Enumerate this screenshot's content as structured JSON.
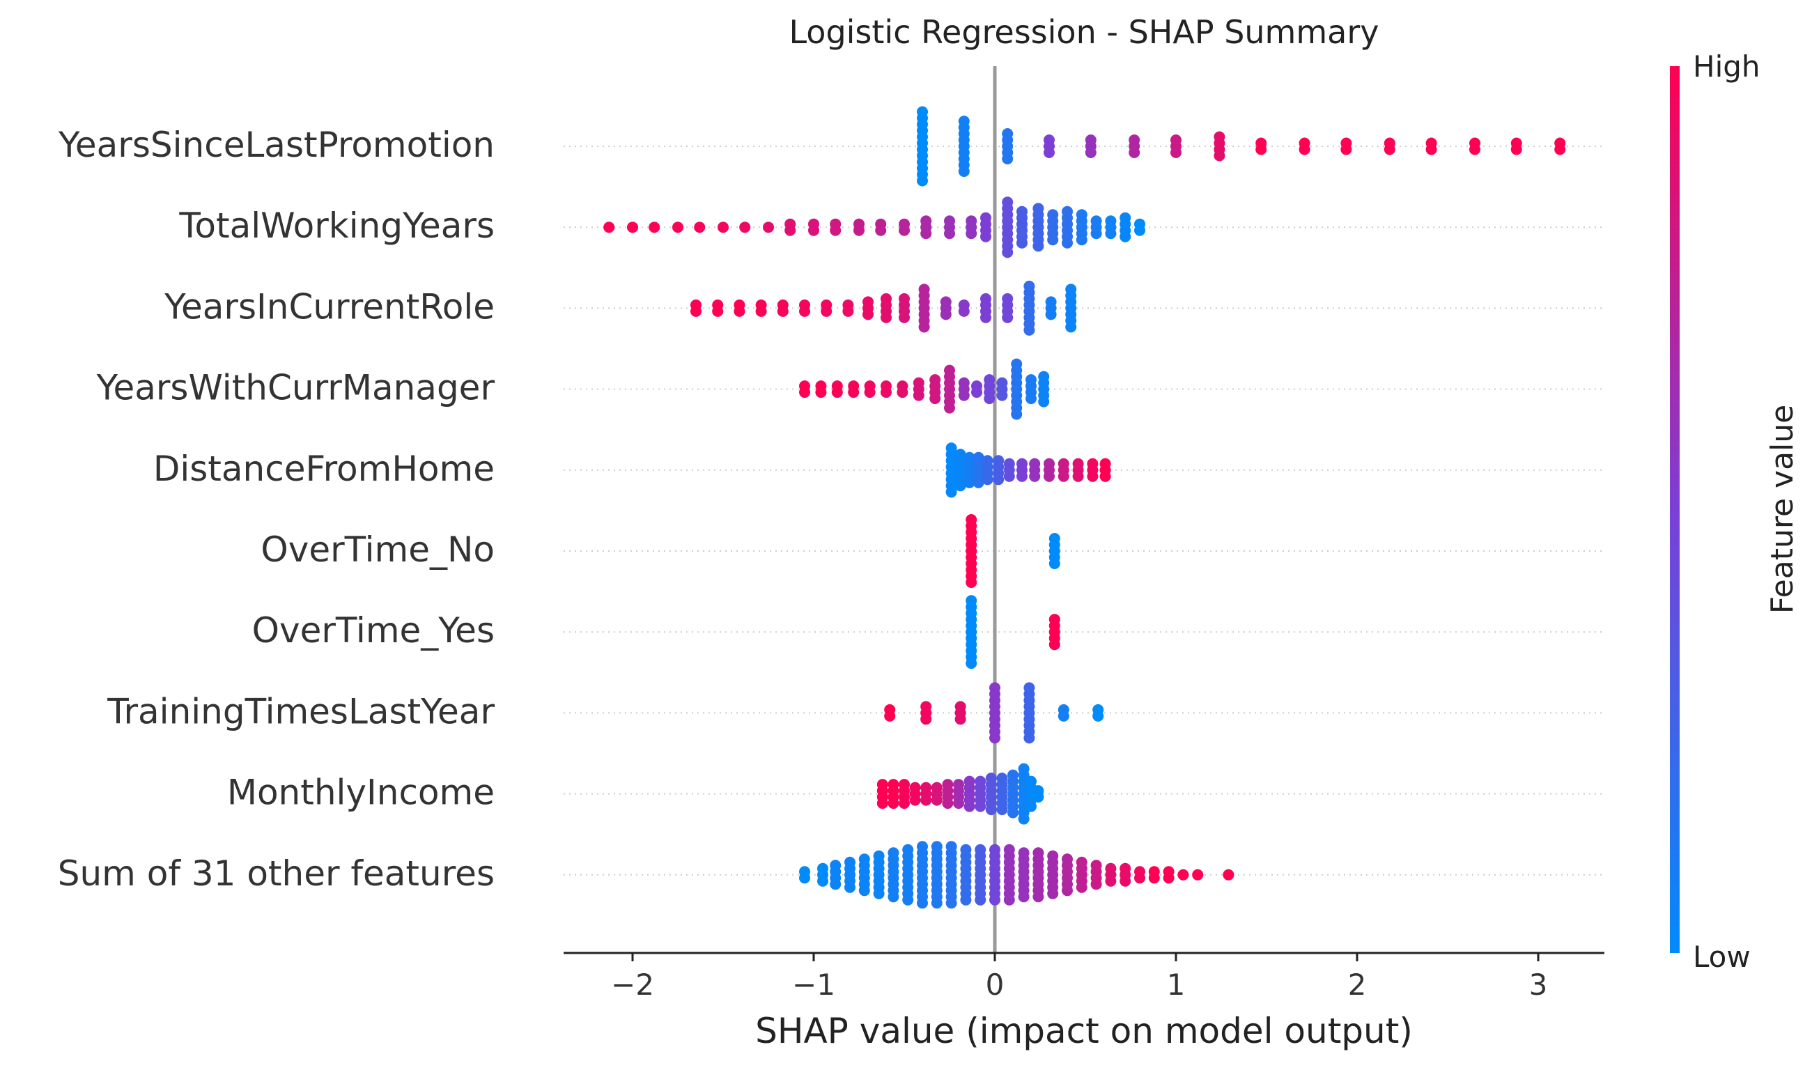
{
  "chart_data": {
    "type": "scatter",
    "subtype": "shap-beeswarm",
    "title": "Logistic Regression - SHAP Summary",
    "xlabel": "SHAP value (impact on model output)",
    "xlim": [
      -2.4,
      3.4
    ],
    "xticks": [
      -2,
      -1,
      0,
      1,
      2,
      3
    ],
    "xtick_labels": [
      "−2",
      "−1",
      "0",
      "1",
      "2",
      "3"
    ],
    "grid": "dotted horizontal per feature row",
    "zero_line": true,
    "colorbar": {
      "label": "Feature value",
      "high_label": "High",
      "low_label": "Low",
      "high_color": "#ff0052",
      "low_color": "#008bfb"
    },
    "features": [
      {
        "name": "YearsSinceLastPromotion",
        "clusters": [
          {
            "x": -0.4,
            "v": 0.0,
            "n": 12
          },
          {
            "x": -0.17,
            "v": 0.07,
            "n": 9
          },
          {
            "x": 0.07,
            "v": 0.14,
            "n": 5
          },
          {
            "x": 0.3,
            "v": 0.5,
            "n": 3
          },
          {
            "x": 0.53,
            "v": 0.6,
            "n": 3
          },
          {
            "x": 0.77,
            "v": 0.7,
            "n": 3
          },
          {
            "x": 1.0,
            "v": 0.8,
            "n": 3
          },
          {
            "x": 1.24,
            "v": 0.9,
            "n": 4
          },
          {
            "x": 1.47,
            "v": 1.0,
            "n": 2
          },
          {
            "x": 1.71,
            "v": 1.0,
            "n": 2
          },
          {
            "x": 1.94,
            "v": 1.0,
            "n": 2
          },
          {
            "x": 2.18,
            "v": 1.0,
            "n": 2
          },
          {
            "x": 2.41,
            "v": 1.0,
            "n": 2
          },
          {
            "x": 2.65,
            "v": 1.0,
            "n": 2
          },
          {
            "x": 2.88,
            "v": 1.0,
            "n": 2
          },
          {
            "x": 3.12,
            "v": 1.0,
            "n": 2
          }
        ]
      },
      {
        "name": "TotalWorkingYears",
        "clusters": [
          {
            "x": -2.13,
            "v": 1.0,
            "n": 1
          },
          {
            "x": -2.0,
            "v": 1.0,
            "n": 1
          },
          {
            "x": -1.88,
            "v": 1.0,
            "n": 1
          },
          {
            "x": -1.75,
            "v": 0.98,
            "n": 1
          },
          {
            "x": -1.63,
            "v": 0.97,
            "n": 1
          },
          {
            "x": -1.5,
            "v": 0.95,
            "n": 1
          },
          {
            "x": -1.38,
            "v": 0.93,
            "n": 1
          },
          {
            "x": -1.25,
            "v": 0.9,
            "n": 1
          },
          {
            "x": -1.13,
            "v": 0.88,
            "n": 2
          },
          {
            "x": -1.0,
            "v": 0.85,
            "n": 2
          },
          {
            "x": -0.88,
            "v": 0.82,
            "n": 2
          },
          {
            "x": -0.75,
            "v": 0.78,
            "n": 2
          },
          {
            "x": -0.63,
            "v": 0.75,
            "n": 2
          },
          {
            "x": -0.5,
            "v": 0.72,
            "n": 2
          },
          {
            "x": -0.38,
            "v": 0.68,
            "n": 3
          },
          {
            "x": -0.25,
            "v": 0.62,
            "n": 3
          },
          {
            "x": -0.13,
            "v": 0.58,
            "n": 3
          },
          {
            "x": -0.05,
            "v": 0.5,
            "n": 4
          },
          {
            "x": 0.07,
            "v": 0.4,
            "n": 9
          },
          {
            "x": 0.15,
            "v": 0.3,
            "n": 6
          },
          {
            "x": 0.24,
            "v": 0.25,
            "n": 7
          },
          {
            "x": 0.32,
            "v": 0.2,
            "n": 5
          },
          {
            "x": 0.4,
            "v": 0.18,
            "n": 6
          },
          {
            "x": 0.48,
            "v": 0.12,
            "n": 5
          },
          {
            "x": 0.56,
            "v": 0.1,
            "n": 3
          },
          {
            "x": 0.64,
            "v": 0.06,
            "n": 3
          },
          {
            "x": 0.72,
            "v": 0.03,
            "n": 4
          },
          {
            "x": 0.8,
            "v": 0.0,
            "n": 2
          }
        ]
      },
      {
        "name": "YearsInCurrentRole",
        "clusters": [
          {
            "x": -1.65,
            "v": 1.0,
            "n": 2
          },
          {
            "x": -1.53,
            "v": 1.0,
            "n": 2
          },
          {
            "x": -1.41,
            "v": 1.0,
            "n": 2
          },
          {
            "x": -1.29,
            "v": 0.98,
            "n": 2
          },
          {
            "x": -1.17,
            "v": 0.97,
            "n": 2
          },
          {
            "x": -1.05,
            "v": 0.96,
            "n": 2
          },
          {
            "x": -0.93,
            "v": 0.95,
            "n": 2
          },
          {
            "x": -0.81,
            "v": 0.93,
            "n": 2
          },
          {
            "x": -0.7,
            "v": 0.92,
            "n": 3
          },
          {
            "x": -0.6,
            "v": 0.9,
            "n": 4
          },
          {
            "x": -0.5,
            "v": 0.85,
            "n": 4
          },
          {
            "x": -0.39,
            "v": 0.72,
            "n": 7
          },
          {
            "x": -0.27,
            "v": 0.62,
            "n": 3
          },
          {
            "x": -0.17,
            "v": 0.55,
            "n": 2
          },
          {
            "x": -0.05,
            "v": 0.5,
            "n": 4
          },
          {
            "x": 0.07,
            "v": 0.45,
            "n": 4
          },
          {
            "x": 0.19,
            "v": 0.2,
            "n": 8
          },
          {
            "x": 0.31,
            "v": 0.08,
            "n": 3
          },
          {
            "x": 0.42,
            "v": 0.05,
            "n": 7
          }
        ]
      },
      {
        "name": "YearsWithCurrManager",
        "clusters": [
          {
            "x": -1.05,
            "v": 1.0,
            "n": 2
          },
          {
            "x": -0.96,
            "v": 1.0,
            "n": 2
          },
          {
            "x": -0.87,
            "v": 0.98,
            "n": 2
          },
          {
            "x": -0.78,
            "v": 0.97,
            "n": 2
          },
          {
            "x": -0.69,
            "v": 0.95,
            "n": 2
          },
          {
            "x": -0.6,
            "v": 0.93,
            "n": 2
          },
          {
            "x": -0.51,
            "v": 0.9,
            "n": 2
          },
          {
            "x": -0.42,
            "v": 0.85,
            "n": 3
          },
          {
            "x": -0.33,
            "v": 0.82,
            "n": 4
          },
          {
            "x": -0.25,
            "v": 0.75,
            "n": 7
          },
          {
            "x": -0.17,
            "v": 0.6,
            "n": 3
          },
          {
            "x": -0.1,
            "v": 0.5,
            "n": 2
          },
          {
            "x": -0.03,
            "v": 0.45,
            "n": 4
          },
          {
            "x": 0.04,
            "v": 0.35,
            "n": 3
          },
          {
            "x": 0.12,
            "v": 0.15,
            "n": 9
          },
          {
            "x": 0.2,
            "v": 0.1,
            "n": 4
          },
          {
            "x": 0.27,
            "v": 0.05,
            "n": 5
          }
        ]
      },
      {
        "name": "DistanceFromHome",
        "clusters": [
          {
            "x": -0.24,
            "v": 0.02,
            "n": 8
          },
          {
            "x": -0.19,
            "v": 0.04,
            "n": 6
          },
          {
            "x": -0.14,
            "v": 0.08,
            "n": 5
          },
          {
            "x": -0.09,
            "v": 0.15,
            "n": 5
          },
          {
            "x": -0.04,
            "v": 0.22,
            "n": 4
          },
          {
            "x": 0.02,
            "v": 0.3,
            "n": 4
          },
          {
            "x": 0.08,
            "v": 0.4,
            "n": 3
          },
          {
            "x": 0.15,
            "v": 0.5,
            "n": 3
          },
          {
            "x": 0.22,
            "v": 0.6,
            "n": 3
          },
          {
            "x": 0.3,
            "v": 0.7,
            "n": 3
          },
          {
            "x": 0.38,
            "v": 0.8,
            "n": 3
          },
          {
            "x": 0.46,
            "v": 0.88,
            "n": 3
          },
          {
            "x": 0.54,
            "v": 0.95,
            "n": 3
          },
          {
            "x": 0.61,
            "v": 1.0,
            "n": 3
          }
        ]
      },
      {
        "name": "OverTime_No",
        "clusters": [
          {
            "x": -0.13,
            "v": 1.0,
            "n": 11
          },
          {
            "x": 0.33,
            "v": 0.0,
            "n": 5
          }
        ]
      },
      {
        "name": "OverTime_Yes",
        "clusters": [
          {
            "x": -0.13,
            "v": 0.0,
            "n": 11
          },
          {
            "x": 0.33,
            "v": 1.0,
            "n": 5
          }
        ]
      },
      {
        "name": "TrainingTimesLastYear",
        "clusters": [
          {
            "x": -0.58,
            "v": 1.0,
            "n": 2
          },
          {
            "x": -0.38,
            "v": 0.95,
            "n": 3
          },
          {
            "x": -0.19,
            "v": 0.9,
            "n": 3
          },
          {
            "x": 0.0,
            "v": 0.55,
            "n": 9
          },
          {
            "x": 0.19,
            "v": 0.25,
            "n": 9
          },
          {
            "x": 0.38,
            "v": 0.08,
            "n": 2
          },
          {
            "x": 0.57,
            "v": 0.0,
            "n": 2
          }
        ]
      },
      {
        "name": "MonthlyIncome",
        "clusters": [
          {
            "x": -0.62,
            "v": 1.0,
            "n": 4
          },
          {
            "x": -0.56,
            "v": 1.0,
            "n": 4
          },
          {
            "x": -0.5,
            "v": 0.97,
            "n": 4
          },
          {
            "x": -0.44,
            "v": 0.95,
            "n": 3
          },
          {
            "x": -0.38,
            "v": 0.9,
            "n": 3
          },
          {
            "x": -0.32,
            "v": 0.85,
            "n": 3
          },
          {
            "x": -0.26,
            "v": 0.75,
            "n": 4
          },
          {
            "x": -0.2,
            "v": 0.65,
            "n": 4
          },
          {
            "x": -0.14,
            "v": 0.55,
            "n": 5
          },
          {
            "x": -0.08,
            "v": 0.45,
            "n": 5
          },
          {
            "x": -0.02,
            "v": 0.35,
            "n": 6
          },
          {
            "x": 0.04,
            "v": 0.25,
            "n": 6
          },
          {
            "x": 0.1,
            "v": 0.15,
            "n": 7
          },
          {
            "x": 0.16,
            "v": 0.06,
            "n": 9
          },
          {
            "x": 0.2,
            "v": 0.02,
            "n": 5
          },
          {
            "x": 0.24,
            "v": 0.0,
            "n": 2
          }
        ]
      },
      {
        "name": "Sum of 31 other features",
        "clusters": [
          {
            "x": -1.05,
            "v": 0.0,
            "n": 2
          },
          {
            "x": -0.95,
            "v": 0.0,
            "n": 3
          },
          {
            "x": -0.88,
            "v": 0.05,
            "n": 4
          },
          {
            "x": -0.8,
            "v": 0.05,
            "n": 5
          },
          {
            "x": -0.72,
            "v": 0.05,
            "n": 6
          },
          {
            "x": -0.64,
            "v": 0.05,
            "n": 7
          },
          {
            "x": -0.56,
            "v": 0.08,
            "n": 8
          },
          {
            "x": -0.48,
            "v": 0.08,
            "n": 9
          },
          {
            "x": -0.4,
            "v": 0.1,
            "n": 10
          },
          {
            "x": -0.32,
            "v": 0.12,
            "n": 10
          },
          {
            "x": -0.24,
            "v": 0.15,
            "n": 10
          },
          {
            "x": -0.16,
            "v": 0.2,
            "n": 9
          },
          {
            "x": -0.08,
            "v": 0.3,
            "n": 9
          },
          {
            "x": 0.0,
            "v": 0.45,
            "n": 9
          },
          {
            "x": 0.08,
            "v": 0.6,
            "n": 9
          },
          {
            "x": 0.16,
            "v": 0.6,
            "n": 8
          },
          {
            "x": 0.24,
            "v": 0.65,
            "n": 8
          },
          {
            "x": 0.32,
            "v": 0.65,
            "n": 7
          },
          {
            "x": 0.4,
            "v": 0.7,
            "n": 6
          },
          {
            "x": 0.48,
            "v": 0.75,
            "n": 5
          },
          {
            "x": 0.56,
            "v": 0.8,
            "n": 4
          },
          {
            "x": 0.64,
            "v": 0.88,
            "n": 3
          },
          {
            "x": 0.72,
            "v": 0.92,
            "n": 3
          },
          {
            "x": 0.8,
            "v": 0.95,
            "n": 2
          },
          {
            "x": 0.88,
            "v": 1.0,
            "n": 2
          },
          {
            "x": 0.96,
            "v": 1.0,
            "n": 2
          },
          {
            "x": 1.04,
            "v": 1.0,
            "n": 1
          },
          {
            "x": 1.12,
            "v": 1.0,
            "n": 1
          },
          {
            "x": 1.29,
            "v": 1.0,
            "n": 1
          }
        ]
      }
    ]
  }
}
